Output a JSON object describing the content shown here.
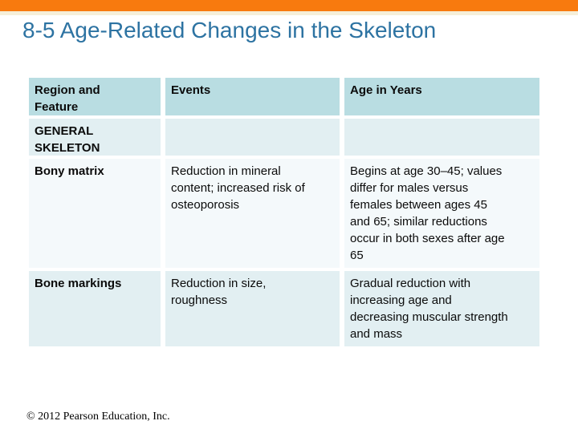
{
  "slide": {
    "title": "8-5 Age-Related Changes in the Skeleton",
    "footer": "© 2012 Pearson Education, Inc."
  },
  "colors": {
    "accent_bar": "#F87A0E",
    "accent_bar_underline": "#F5EFD9",
    "title_text": "#2D73A2",
    "table_header_bg": "#B9DDE2",
    "row_alt_bg": "#E2EFF2",
    "row_plain_bg": "#F4F9FB",
    "body_text": "#0B0B0B"
  },
  "table": {
    "headers": {
      "region_feature": "Region and Feature",
      "events": "Events",
      "age_in_years": "Age in Years"
    },
    "rows": [
      {
        "feature": "GENERAL SKELETON",
        "events": "",
        "age": ""
      },
      {
        "feature": "Bony matrix",
        "events": "Reduction in mineral content; increased risk of osteoporosis",
        "age": "Begins at age 30–45; values differ for males versus females between ages 45 and 65; similar reductions occur in both sexes after age 65"
      },
      {
        "feature": "Bone markings",
        "events": "Reduction in size, roughness",
        "age": "Gradual reduction with increasing age and decreasing muscular strength and mass"
      }
    ]
  }
}
